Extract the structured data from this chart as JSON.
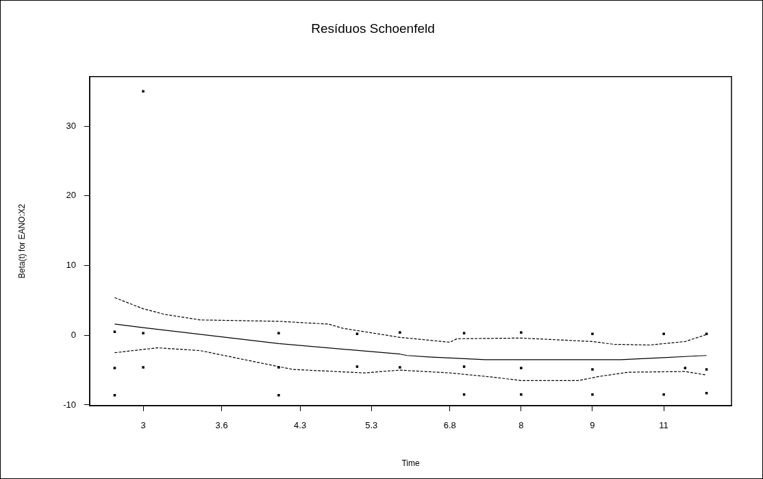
{
  "chart_data": {
    "type": "scatter",
    "title": "Resíduos Schoenfeld",
    "xlabel": "Time",
    "ylabel": "Beta(t) for EANO:X2",
    "categories": [
      null,
      null,
      null,
      null,
      null,
      null,
      null,
      "3",
      null,
      null,
      null,
      null,
      null,
      null,
      null,
      null,
      null,
      null,
      "3.6",
      null,
      null,
      null,
      null,
      null,
      null,
      null,
      null,
      null,
      null,
      "4.3",
      null,
      null,
      null,
      null,
      null,
      null,
      null,
      null,
      null,
      "5.3",
      null,
      null,
      null,
      null,
      null,
      null,
      null,
      null,
      null,
      null,
      "6.8",
      null,
      null,
      null,
      null,
      null,
      null,
      null,
      null,
      null,
      "8",
      null,
      null,
      null,
      null,
      null,
      null,
      null,
      null,
      null,
      "9",
      null,
      null,
      null,
      null,
      null,
      null,
      null,
      null,
      null,
      "11",
      null,
      null,
      null,
      null,
      null,
      null,
      null,
      null,
      null
    ],
    "ylim": [
      -10.1,
      37.1
    ],
    "yticks": [
      -10,
      0,
      10,
      20,
      30
    ],
    "grid": false,
    "legend": false,
    "marker": "square",
    "series": [
      {
        "color": "#000000",
        "values": [
          null,
          null,
          null,
          0.5,
          null,
          null,
          null,
          0.3,
          null,
          null,
          null,
          null,
          null,
          null,
          null,
          null,
          null,
          null,
          null,
          null,
          null,
          null,
          null,
          null,
          null,
          null,
          0.3,
          null,
          null,
          null,
          null,
          null,
          null,
          null,
          null,
          null,
          null,
          0.2,
          null,
          null,
          null,
          null,
          null,
          0.4,
          null,
          null,
          null,
          null,
          null,
          null,
          null,
          null,
          0.3,
          null,
          null,
          null,
          null,
          null,
          null,
          null,
          0.4,
          null,
          null,
          null,
          null,
          null,
          null,
          null,
          null,
          null,
          0.2,
          null,
          null,
          null,
          null,
          null,
          null,
          null,
          null,
          null,
          0.2,
          null,
          null,
          null,
          null,
          null,
          0.2,
          null,
          null,
          null
        ]
      },
      {
        "color": "#000000",
        "values": [
          null,
          null,
          null,
          -4.7,
          null,
          null,
          null,
          -4.6,
          null,
          null,
          null,
          null,
          null,
          null,
          null,
          null,
          null,
          null,
          null,
          null,
          null,
          null,
          null,
          null,
          null,
          null,
          -4.6,
          null,
          null,
          null,
          null,
          null,
          null,
          null,
          null,
          null,
          null,
          -4.5,
          null,
          null,
          null,
          null,
          null,
          -4.6,
          null,
          null,
          null,
          null,
          null,
          null,
          null,
          null,
          -4.5,
          null,
          null,
          null,
          null,
          null,
          null,
          null,
          -4.7,
          null,
          null,
          null,
          null,
          null,
          null,
          null,
          null,
          null,
          -4.9,
          null,
          null,
          null,
          null,
          null,
          null,
          null,
          null,
          null,
          null,
          null,
          null,
          -4.7,
          null,
          null,
          -4.9,
          null,
          null,
          null
        ]
      },
      {
        "color": "#000000",
        "values": [
          null,
          null,
          null,
          -8.6,
          null,
          null,
          null,
          null,
          null,
          null,
          null,
          null,
          null,
          null,
          null,
          null,
          null,
          null,
          null,
          null,
          null,
          null,
          null,
          null,
          null,
          null,
          -8.6,
          null,
          null,
          null,
          null,
          null,
          null,
          null,
          null,
          null,
          null,
          null,
          null,
          null,
          null,
          null,
          null,
          null,
          null,
          null,
          null,
          null,
          null,
          null,
          null,
          null,
          -8.5,
          null,
          null,
          null,
          null,
          null,
          null,
          null,
          -8.5,
          null,
          null,
          null,
          null,
          null,
          null,
          null,
          null,
          null,
          -8.5,
          null,
          null,
          null,
          null,
          null,
          null,
          null,
          null,
          null,
          -8.5,
          null,
          null,
          null,
          null,
          null,
          -8.3,
          null,
          null,
          null
        ]
      },
      {
        "color": "#000000",
        "values": [
          null,
          null,
          null,
          null,
          null,
          null,
          null,
          35.0,
          null,
          null,
          null,
          null,
          null,
          null,
          null,
          null,
          null,
          null,
          null,
          null,
          null,
          null,
          null,
          null,
          null,
          null,
          null,
          null,
          null,
          null,
          null,
          null,
          null,
          null,
          null,
          null,
          null,
          null,
          null,
          null,
          null,
          null,
          null,
          null,
          null,
          null,
          null,
          null,
          null,
          null,
          null,
          null,
          null,
          null,
          null,
          null,
          null,
          null,
          null,
          null,
          null,
          null,
          null,
          null,
          null,
          null,
          null,
          null,
          null,
          null,
          null,
          null,
          null,
          null,
          null,
          null,
          null,
          null,
          null,
          null,
          null,
          null,
          null,
          null,
          null,
          null,
          null,
          null,
          null,
          null
        ]
      },
      {
        "type": "line",
        "marker": "none",
        "line_style": "solid",
        "color": "#000000",
        "values": [
          null,
          null,
          null,
          1.6,
          null,
          null,
          null,
          1.1,
          null,
          null,
          null,
          null,
          null,
          null,
          null,
          null,
          null,
          null,
          null,
          null,
          null,
          null,
          null,
          null,
          null,
          null,
          -1.2,
          null,
          null,
          null,
          null,
          null,
          null,
          null,
          null,
          null,
          null,
          null,
          null,
          null,
          null,
          null,
          null,
          -2.7,
          -2.9,
          null,
          null,
          -3.1,
          null,
          null,
          null,
          -3.3,
          null,
          null,
          null,
          -3.5,
          null,
          null,
          null,
          null,
          null,
          null,
          null,
          null,
          null,
          null,
          null,
          null,
          null,
          null,
          null,
          null,
          null,
          null,
          -3.5,
          null,
          null,
          null,
          null,
          null,
          -3.2,
          null,
          null,
          null,
          -3.0,
          null,
          -2.9,
          null,
          null,
          null
        ]
      },
      {
        "type": "line",
        "marker": "none",
        "line_style": "dashed",
        "color": "#000000",
        "values": [
          null,
          null,
          null,
          5.4,
          null,
          null,
          null,
          3.8,
          null,
          null,
          3.0,
          null,
          null,
          null,
          null,
          2.2,
          null,
          null,
          null,
          null,
          null,
          null,
          null,
          null,
          null,
          null,
          2.0,
          null,
          null,
          null,
          null,
          null,
          null,
          1.6,
          null,
          1.0,
          null,
          null,
          null,
          null,
          null,
          null,
          null,
          -0.3,
          null,
          null,
          null,
          null,
          null,
          null,
          -1.0,
          -0.5,
          null,
          null,
          null,
          null,
          null,
          null,
          null,
          null,
          -0.4,
          null,
          null,
          null,
          null,
          null,
          null,
          null,
          null,
          null,
          -0.9,
          null,
          null,
          -1.3,
          null,
          null,
          null,
          null,
          -1.4,
          null,
          null,
          null,
          null,
          -0.9,
          null,
          null,
          0.1,
          null,
          null,
          null
        ]
      },
      {
        "type": "line",
        "marker": "none",
        "line_style": "dashed",
        "color": "#000000",
        "values": [
          null,
          null,
          null,
          -2.5,
          null,
          null,
          null,
          null,
          null,
          -1.8,
          null,
          null,
          null,
          null,
          null,
          -2.2,
          null,
          null,
          null,
          null,
          null,
          null,
          null,
          null,
          null,
          null,
          -4.5,
          null,
          -4.9,
          null,
          null,
          null,
          null,
          null,
          null,
          null,
          null,
          null,
          -5.4,
          null,
          null,
          null,
          null,
          -5.0,
          null,
          null,
          null,
          null,
          null,
          null,
          -5.4,
          null,
          null,
          null,
          null,
          null,
          -6.0,
          null,
          null,
          null,
          -6.5,
          null,
          null,
          null,
          null,
          null,
          null,
          null,
          -6.5,
          null,
          null,
          -5.9,
          null,
          null,
          null,
          -5.3,
          null,
          null,
          null,
          null,
          null,
          null,
          null,
          -5.2,
          null,
          null,
          -5.7,
          null,
          null,
          null
        ]
      }
    ]
  }
}
